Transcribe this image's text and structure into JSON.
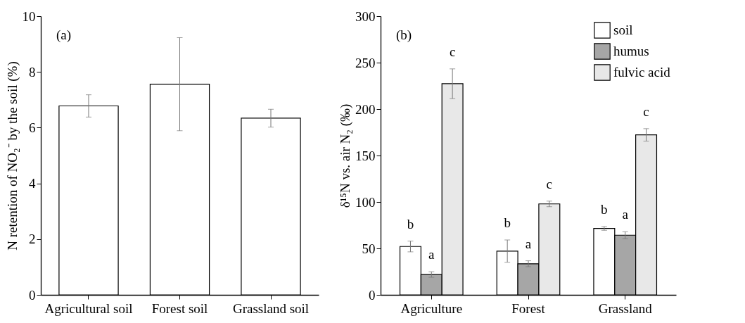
{
  "chart_data": [
    {
      "type": "bar",
      "ylabel": "N retention of NO₂⁻ by the soil (%)",
      "annotations": [
        "(a)"
      ],
      "categories": [
        "Agricultural soil",
        "Forest soil",
        "Grassland soil"
      ],
      "values": [
        6.78,
        7.56,
        6.34
      ],
      "errors": [
        0.4,
        1.67,
        0.32
      ],
      "color": "#ffffff",
      "ylim": [
        0,
        10
      ],
      "yticks": [
        0,
        2,
        4,
        6,
        8,
        10
      ]
    },
    {
      "type": "bar",
      "ylabel": "δ¹⁵N vs. air N₂ (‰)",
      "annotations": [
        "(b)"
      ],
      "categories": [
        "Agriculture",
        "Forest",
        "Grassland"
      ],
      "ylim": [
        0,
        300
      ],
      "yticks": [
        0,
        50,
        100,
        150,
        200,
        250,
        300
      ],
      "legend": "top right",
      "series": [
        {
          "name": "soil",
          "color": "#ffffff",
          "values": [
            52.1,
            47.1,
            71.5
          ],
          "errors": [
            5.8,
            12,
            2
          ],
          "value_labels": [
            "b",
            "b",
            "b"
          ]
        },
        {
          "name": "humus",
          "color": "#a6a6a6",
          "values": [
            21.9,
            33.5,
            64.2
          ],
          "errors": [
            3,
            3.2,
            3.7
          ],
          "value_labels": [
            "a",
            "a",
            "a"
          ]
        },
        {
          "name": "fulvic acid",
          "color": "#e8e8e8",
          "values": [
            227.3,
            97.9,
            172.2
          ],
          "errors": [
            16,
            3,
            6.7
          ],
          "value_labels": [
            "c",
            "c",
            "c"
          ]
        }
      ]
    }
  ]
}
